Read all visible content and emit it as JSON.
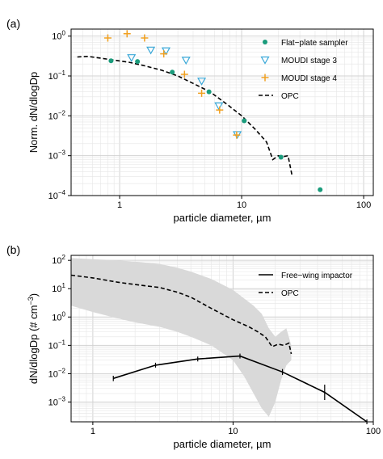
{
  "chart_data": [
    {
      "type": "scatter",
      "panel_label": "(a)",
      "xlabel": "particle diameter, µm",
      "ylabel": "Norm. dN/dlogDp",
      "xscale": "log",
      "yscale": "log",
      "xlim": [
        0.4,
        120
      ],
      "ylim": [
        0.0001,
        1.5
      ],
      "x_ticks": [
        1,
        10,
        100
      ],
      "x_tick_labels": [
        "1",
        "10",
        "100"
      ],
      "y_ticks": [
        0.0001,
        0.001,
        0.01,
        0.1,
        1
      ],
      "y_tick_labels": [
        "10",
        "10",
        "10",
        "10",
        "10"
      ],
      "y_tick_exponents": [
        "−4",
        "−3",
        "−2",
        "−1",
        "0"
      ],
      "grid": true,
      "legend_position": "top-right",
      "series": [
        {
          "name": "Flat−plate sampler",
          "marker": "circle",
          "color": "#1a9c7c",
          "x": [
            0.85,
            1.4,
            2.7,
            5.4,
            10.5,
            21,
            44
          ],
          "y": [
            0.24,
            0.23,
            0.125,
            0.04,
            0.0075,
            0.00092,
            0.00014
          ]
        },
        {
          "name": "MOUDI stage 3",
          "marker": "triangle-down",
          "color": "#3aa8d8",
          "x": [
            1.25,
            1.8,
            2.4,
            3.5,
            4.7,
            6.5,
            9.2
          ],
          "y": [
            0.29,
            0.45,
            0.43,
            0.25,
            0.075,
            0.018,
            0.0034
          ]
        },
        {
          "name": "MOUDI stage 4",
          "marker": "plus",
          "color": "#f0a020",
          "x": [
            0.8,
            1.15,
            1.6,
            2.3,
            3.4,
            4.7,
            6.6,
            9.1
          ],
          "y": [
            0.9,
            1.15,
            0.9,
            0.36,
            0.11,
            0.037,
            0.014,
            0.0033
          ]
        },
        {
          "name": "OPC",
          "line": "dashed",
          "color": "#000000",
          "x": [
            0.45,
            0.55,
            0.7,
            0.9,
            1.2,
            1.6,
            2.2,
            3,
            4,
            5.5,
            7.5,
            10,
            13,
            16,
            18,
            20,
            22,
            24,
            26
          ],
          "y": [
            0.3,
            0.31,
            0.28,
            0.25,
            0.22,
            0.18,
            0.14,
            0.1,
            0.065,
            0.04,
            0.02,
            0.01,
            0.0045,
            0.0022,
            0.0008,
            0.001,
            0.00095,
            0.001,
            0.0003
          ]
        }
      ]
    },
    {
      "type": "line",
      "panel_label": "(b)",
      "xlabel": "particle diameter, µm",
      "ylabel": "dN/dlogDp (# cm",
      "ylabel_sup": "−3",
      "ylabel_end": ")",
      "xscale": "log",
      "yscale": "log",
      "xlim": [
        0.7,
        100
      ],
      "ylim": [
        0.0002,
        150
      ],
      "x_ticks": [
        1,
        10,
        100
      ],
      "x_tick_labels": [
        "1",
        "10",
        "100"
      ],
      "y_ticks": [
        0.001,
        0.01,
        0.1,
        1,
        10,
        100
      ],
      "y_tick_labels": [
        "10",
        "10",
        "10",
        "10",
        "10",
        "10"
      ],
      "y_tick_exponents": [
        "−3",
        "−2",
        "−1",
        "0",
        "1",
        "2"
      ],
      "grid": true,
      "legend_position": "top-right",
      "series": [
        {
          "name": "Free−wing impactor",
          "line": "solid",
          "color": "#000000",
          "x": [
            1.4,
            2.8,
            5.6,
            11.2,
            22.5,
            45,
            90
          ],
          "y": [
            0.0068,
            0.02,
            0.033,
            0.042,
            0.0115,
            0.0022,
            0.0002
          ],
          "error_low": [
            0.0055,
            0.018,
            0.03,
            0.038,
            0.009,
            0.0012,
            0.0002
          ],
          "error_high": [
            0.0085,
            0.023,
            0.037,
            0.046,
            0.0145,
            0.0042,
            0.0002
          ]
        },
        {
          "name": "OPC",
          "line": "dashed",
          "color": "#000000",
          "x": [
            0.7,
            1,
            1.5,
            2,
            3,
            4,
            5,
            7,
            10,
            13,
            15,
            17,
            19,
            21,
            23,
            25,
            26
          ],
          "y": [
            30,
            24,
            17,
            14,
            11,
            7.5,
            5,
            2,
            0.8,
            0.45,
            0.3,
            0.2,
            0.09,
            0.11,
            0.1,
            0.12,
            0.05
          ]
        },
        {
          "name": "OPC range",
          "area": true,
          "color": "#d9d9d9",
          "x": [
            0.7,
            1,
            1.5,
            2,
            3,
            4,
            5,
            7,
            10,
            12,
            14,
            16,
            18,
            20,
            22,
            24,
            26
          ],
          "upper": [
            120,
            110,
            100,
            90,
            75,
            55,
            40,
            22,
            9,
            4.5,
            2.5,
            1.3,
            0.4,
            0.2,
            0.3,
            0.4,
            0.1
          ],
          "lower": [
            2.5,
            1.5,
            0.9,
            0.65,
            0.45,
            0.3,
            0.2,
            0.1,
            0.03,
            0.008,
            0.002,
            0.0006,
            0.0003,
            0.001,
            0.006,
            0.02,
            0.03
          ]
        }
      ]
    }
  ]
}
